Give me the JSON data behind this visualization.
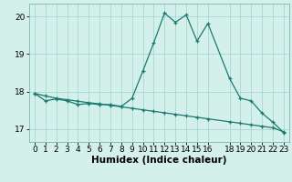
{
  "line1_x": [
    0,
    1,
    2,
    3,
    4,
    5,
    6,
    7,
    8,
    9,
    10,
    11,
    12,
    13,
    14,
    15,
    16,
    18,
    19,
    20,
    21,
    22,
    23
  ],
  "line1_y": [
    17.95,
    17.75,
    17.8,
    17.75,
    17.65,
    17.68,
    17.65,
    17.65,
    17.6,
    17.82,
    18.55,
    19.3,
    20.1,
    19.85,
    20.05,
    19.35,
    19.82,
    18.35,
    17.82,
    17.75,
    17.42,
    17.18,
    16.9
  ],
  "line2_x": [
    0,
    1,
    2,
    3,
    4,
    5,
    6,
    7,
    8,
    9,
    10,
    11,
    12,
    13,
    14,
    15,
    16,
    18,
    19,
    20,
    21,
    22,
    23
  ],
  "line2_y": [
    17.95,
    17.88,
    17.82,
    17.78,
    17.74,
    17.7,
    17.67,
    17.63,
    17.59,
    17.55,
    17.51,
    17.47,
    17.43,
    17.39,
    17.35,
    17.31,
    17.27,
    17.19,
    17.15,
    17.11,
    17.07,
    17.03,
    16.92
  ],
  "line_color": "#1a7a6e",
  "background_color": "#d4f0eb",
  "grid_color": "#a8d8d2",
  "xlabel": "Humidex (Indice chaleur)",
  "xlabel_fontsize": 7.5,
  "ylim": [
    16.65,
    20.35
  ],
  "xlim": [
    -0.5,
    23.5
  ],
  "yticks": [
    17,
    18,
    19,
    20
  ],
  "xticks": [
    0,
    1,
    2,
    3,
    4,
    5,
    6,
    7,
    8,
    9,
    10,
    11,
    12,
    13,
    14,
    15,
    16,
    18,
    19,
    20,
    21,
    22,
    23
  ],
  "tick_fontsize": 6.5,
  "marker_size": 3.5,
  "line_width": 0.9
}
